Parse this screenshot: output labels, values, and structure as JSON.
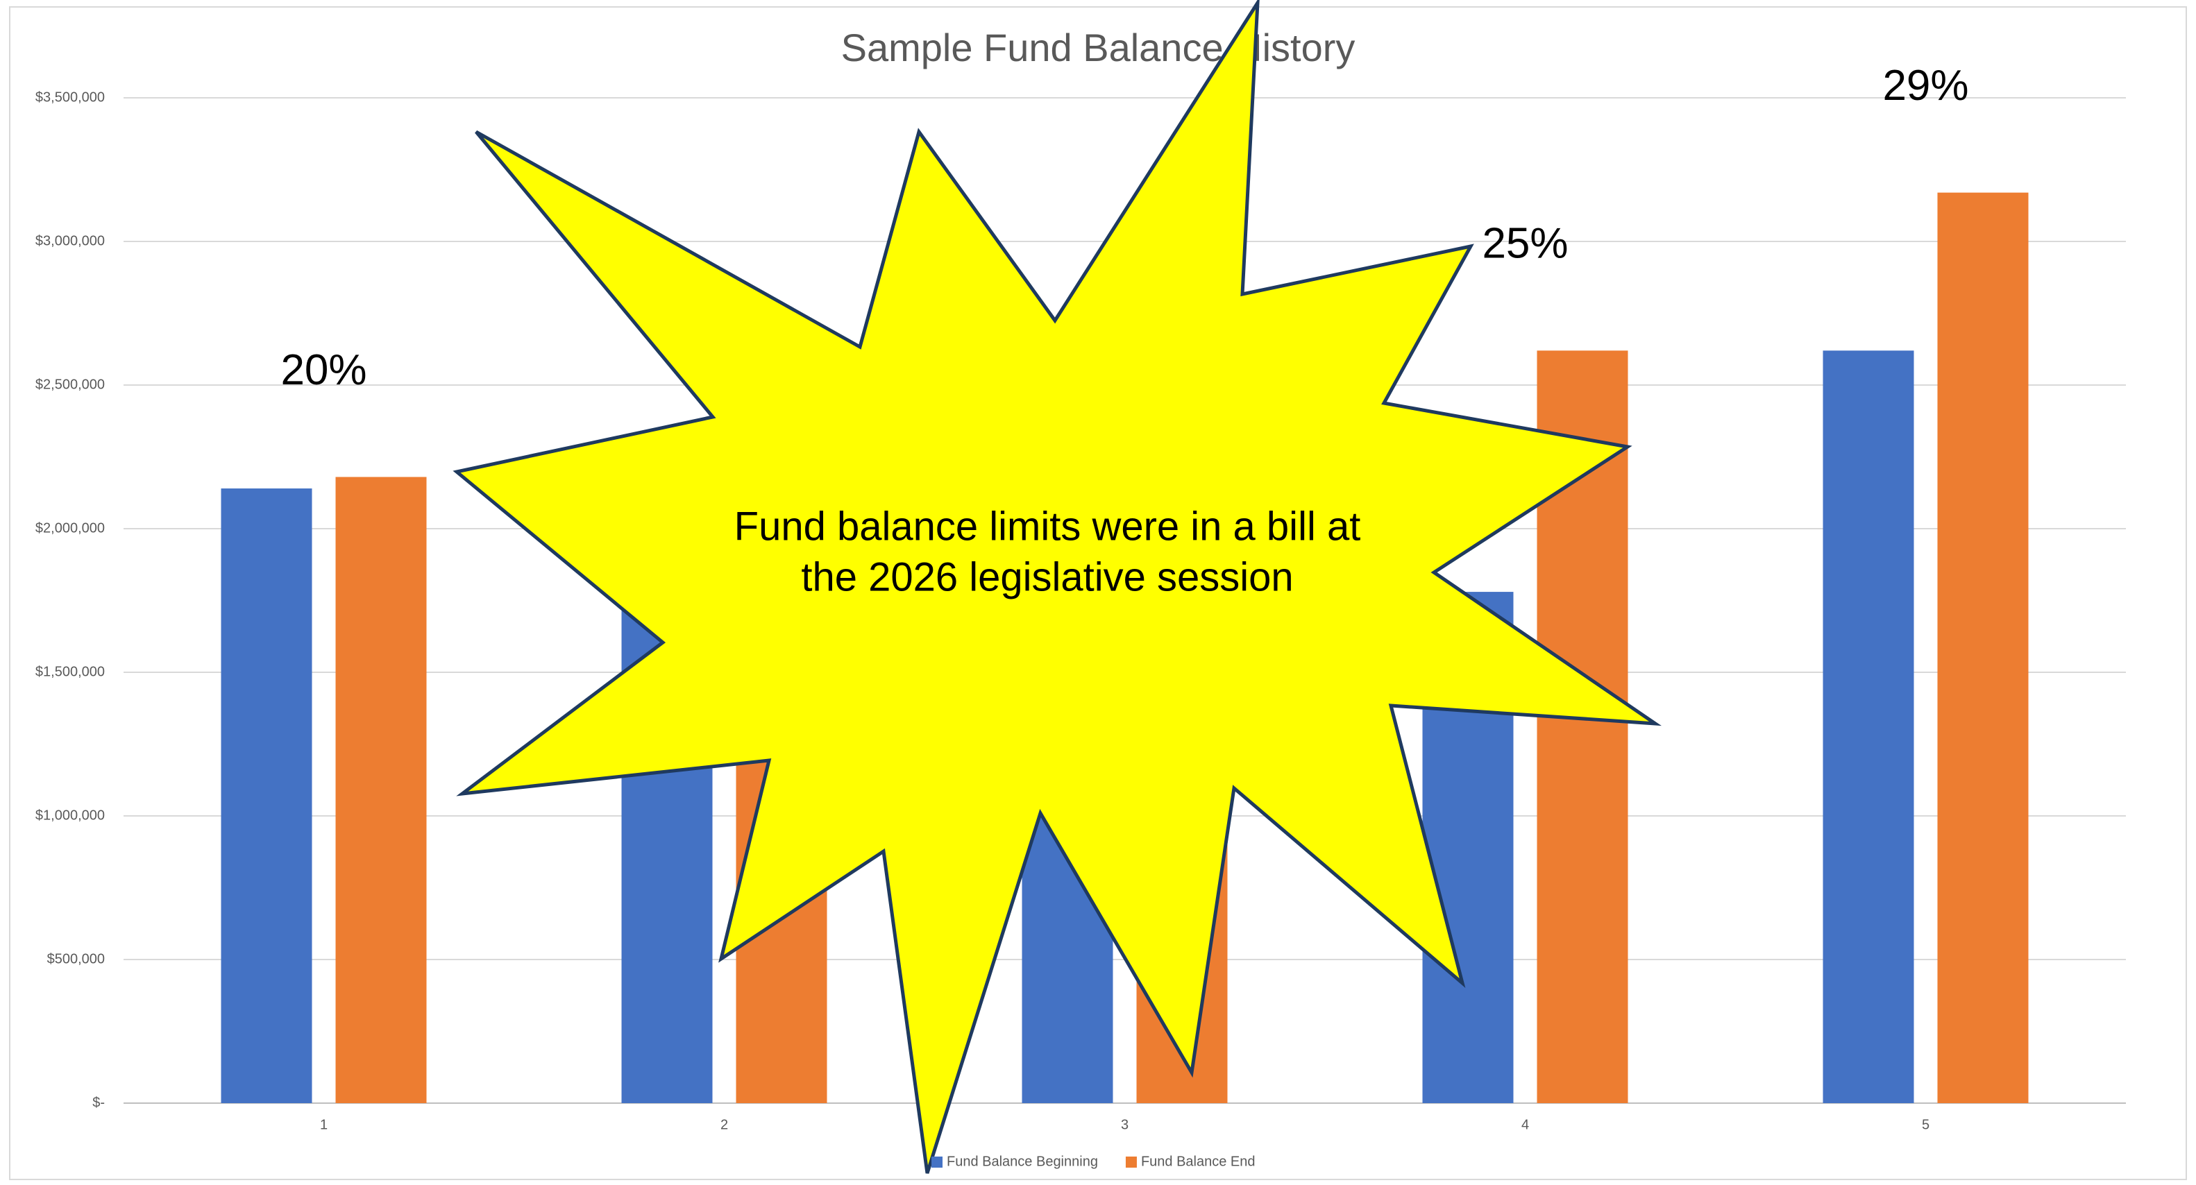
{
  "chart_data": {
    "type": "bar",
    "title": "Sample Fund Balance History",
    "categories": [
      "1",
      "2",
      "3",
      "4",
      "5"
    ],
    "series": [
      {
        "name": "Fund Balance Beginning",
        "color": "#4472c4",
        "values": [
          2140000,
          2180000,
          1600000,
          1780000,
          2620000
        ]
      },
      {
        "name": "Fund Balance End",
        "color": "#ed7d31",
        "values": [
          2180000,
          1600000,
          1780000,
          2620000,
          3170000
        ]
      }
    ],
    "ylim": [
      0,
      3500000
    ],
    "yticks": [
      {
        "value": 0,
        "label": "$-"
      },
      {
        "value": 500000,
        "label": "$500,000"
      },
      {
        "value": 1000000,
        "label": "$1,000,000"
      },
      {
        "value": 1500000,
        "label": "$1,500,000"
      },
      {
        "value": 2000000,
        "label": "$2,000,000"
      },
      {
        "value": 2500000,
        "label": "$2,500,000"
      },
      {
        "value": 3000000,
        "label": "$3,000,000"
      },
      {
        "value": 3500000,
        "label": "$3,500,000"
      }
    ],
    "grid": true,
    "legend": "bottom",
    "annotations": [
      {
        "text": "20%",
        "category": "1"
      },
      {
        "text": "25%",
        "category": "4"
      },
      {
        "text": "29%",
        "category": "5"
      }
    ]
  },
  "callout": {
    "lines": [
      "Fund balance limits were in a bill at",
      "the 2026 legislative session"
    ]
  }
}
